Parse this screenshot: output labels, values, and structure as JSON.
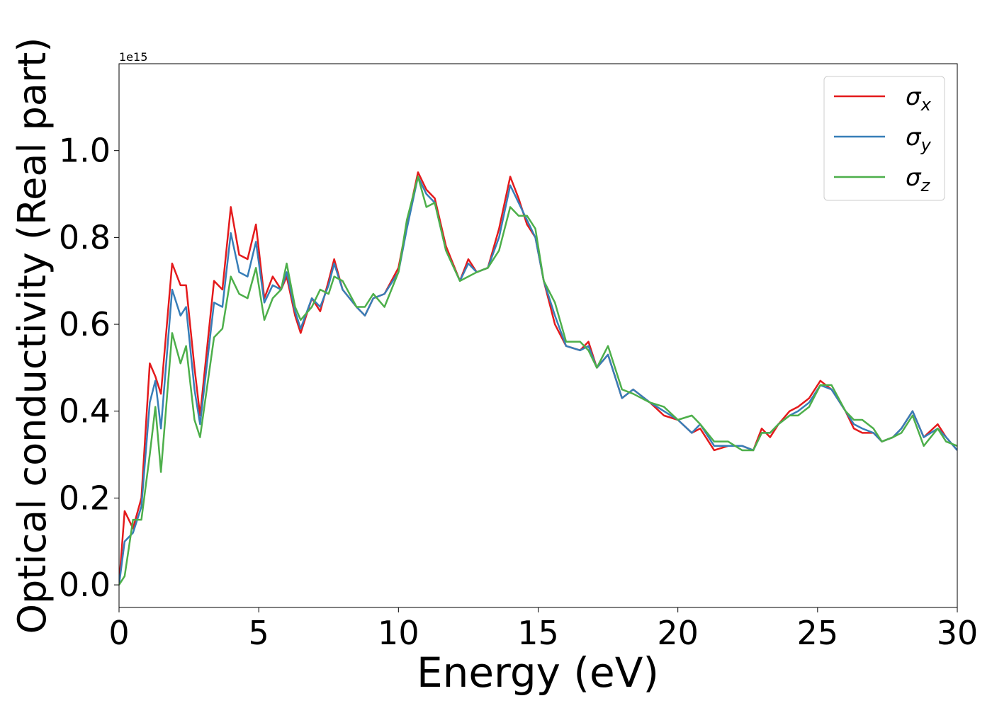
{
  "chart_data": {
    "type": "line",
    "xlabel": "Energy (eV)",
    "ylabel": "Optical conductivity (Real part)",
    "y_offset_text": "1e15",
    "x": [
      0,
      0.2,
      0.5,
      0.8,
      1.1,
      1.3,
      1.5,
      1.9,
      2.2,
      2.4,
      2.7,
      2.9,
      3.4,
      3.7,
      4.0,
      4.3,
      4.6,
      4.9,
      5.2,
      5.5,
      5.8,
      6.0,
      6.3,
      6.5,
      6.9,
      7.2,
      7.5,
      7.7,
      8.0,
      8.5,
      8.8,
      9.1,
      9.5,
      10.0,
      10.3,
      10.7,
      11.0,
      11.3,
      11.7,
      12.2,
      12.5,
      12.8,
      13.2,
      13.6,
      14.0,
      14.3,
      14.6,
      14.9,
      15.2,
      15.6,
      16.0,
      16.5,
      16.8,
      17.1,
      17.5,
      18.0,
      18.4,
      19.0,
      19.5,
      20.0,
      20.5,
      20.8,
      21.3,
      21.8,
      22.3,
      22.7,
      23.0,
      23.3,
      23.6,
      24.0,
      24.3,
      24.7,
      25.1,
      25.5,
      26.0,
      26.3,
      26.6,
      27.0,
      27.3,
      27.7,
      28.0,
      28.4,
      28.8,
      29.3,
      29.6,
      30.0
    ],
    "series": [
      {
        "name": "σx",
        "color": "#e41a1c",
        "values": [
          0.0,
          0.17,
          0.13,
          0.2,
          0.51,
          0.48,
          0.44,
          0.74,
          0.69,
          0.69,
          0.5,
          0.39,
          0.7,
          0.68,
          0.87,
          0.76,
          0.75,
          0.83,
          0.66,
          0.71,
          0.68,
          0.71,
          0.62,
          0.58,
          0.66,
          0.63,
          0.7,
          0.75,
          0.68,
          0.64,
          0.62,
          0.66,
          0.67,
          0.73,
          0.83,
          0.95,
          0.91,
          0.89,
          0.78,
          0.7,
          0.75,
          0.72,
          0.73,
          0.82,
          0.94,
          0.89,
          0.83,
          0.8,
          0.7,
          0.6,
          0.55,
          0.54,
          0.56,
          0.5,
          0.53,
          0.43,
          0.45,
          0.42,
          0.39,
          0.38,
          0.35,
          0.36,
          0.31,
          0.32,
          0.32,
          0.31,
          0.36,
          0.34,
          0.37,
          0.4,
          0.41,
          0.43,
          0.47,
          0.45,
          0.4,
          0.36,
          0.35,
          0.35,
          0.33,
          0.34,
          0.36,
          0.4,
          0.34,
          0.37,
          0.34,
          0.31
        ]
      },
      {
        "name": "σy",
        "color": "#377eb8",
        "values": [
          0.0,
          0.1,
          0.12,
          0.18,
          0.42,
          0.47,
          0.36,
          0.68,
          0.62,
          0.64,
          0.45,
          0.37,
          0.65,
          0.64,
          0.81,
          0.72,
          0.71,
          0.79,
          0.65,
          0.69,
          0.68,
          0.72,
          0.63,
          0.59,
          0.66,
          0.64,
          0.69,
          0.74,
          0.68,
          0.64,
          0.62,
          0.66,
          0.67,
          0.72,
          0.82,
          0.94,
          0.9,
          0.88,
          0.77,
          0.7,
          0.74,
          0.72,
          0.73,
          0.8,
          0.92,
          0.88,
          0.84,
          0.8,
          0.7,
          0.62,
          0.55,
          0.54,
          0.55,
          0.5,
          0.53,
          0.43,
          0.45,
          0.42,
          0.4,
          0.38,
          0.35,
          0.37,
          0.32,
          0.32,
          0.32,
          0.31,
          0.35,
          0.35,
          0.37,
          0.39,
          0.4,
          0.42,
          0.46,
          0.45,
          0.4,
          0.37,
          0.36,
          0.35,
          0.33,
          0.34,
          0.36,
          0.4,
          0.34,
          0.36,
          0.34,
          0.31
        ]
      },
      {
        "name": "σz",
        "color": "#4daf4a",
        "values": [
          0.0,
          0.02,
          0.15,
          0.15,
          0.3,
          0.41,
          0.26,
          0.58,
          0.51,
          0.55,
          0.38,
          0.34,
          0.57,
          0.59,
          0.71,
          0.67,
          0.66,
          0.73,
          0.61,
          0.66,
          0.68,
          0.74,
          0.64,
          0.61,
          0.64,
          0.68,
          0.67,
          0.71,
          0.7,
          0.64,
          0.64,
          0.67,
          0.64,
          0.72,
          0.84,
          0.94,
          0.87,
          0.88,
          0.77,
          0.7,
          0.71,
          0.72,
          0.73,
          0.77,
          0.87,
          0.85,
          0.85,
          0.82,
          0.7,
          0.65,
          0.56,
          0.56,
          0.54,
          0.5,
          0.55,
          0.45,
          0.44,
          0.42,
          0.41,
          0.38,
          0.39,
          0.37,
          0.33,
          0.33,
          0.31,
          0.31,
          0.35,
          0.35,
          0.37,
          0.39,
          0.39,
          0.41,
          0.46,
          0.46,
          0.4,
          0.38,
          0.38,
          0.36,
          0.33,
          0.34,
          0.35,
          0.39,
          0.32,
          0.36,
          0.33,
          0.32
        ]
      }
    ],
    "xlim": [
      0,
      30
    ],
    "xticks": [
      0,
      5,
      10,
      15,
      20,
      25,
      30
    ],
    "ylim": [
      -0.052,
      1.2
    ],
    "yticks": [
      {
        "value": 0,
        "label": "0.0"
      },
      0.2,
      0.4,
      0.6,
      0.8,
      {
        "value": 1,
        "label": "1.0"
      }
    ],
    "legend": "upper right",
    "grid": false
  }
}
